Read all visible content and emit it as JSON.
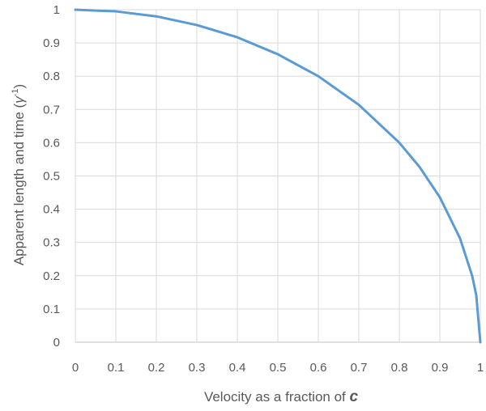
{
  "chart_data": {
    "type": "line",
    "xlabel": "Velocity as a fraction of ",
    "xlabel_var": "c",
    "ylabel": "Apparent length and time (",
    "ylabel_var": "γ",
    "ylabel_sup": "-1",
    "ylabel_end": ")",
    "xlim": [
      0,
      1
    ],
    "ylim": [
      0,
      1
    ],
    "x_ticks": [
      "0",
      "0.1",
      "0.2",
      "0.3",
      "0.4",
      "0.5",
      "0.6",
      "0.7",
      "0.8",
      "0.9",
      "1"
    ],
    "y_ticks": [
      "0",
      "0.1",
      "0.2",
      "0.3",
      "0.4",
      "0.5",
      "0.6",
      "0.7",
      "0.8",
      "0.9",
      "1"
    ],
    "grid": true,
    "series": [
      {
        "color": "#5b9bd5",
        "x": [
          0,
          0.1,
          0.2,
          0.3,
          0.4,
          0.5,
          0.6,
          0.7,
          0.8,
          0.85,
          0.9,
          0.95,
          0.98,
          0.99,
          1
        ],
        "y": [
          1,
          0.995,
          0.98,
          0.954,
          0.917,
          0.866,
          0.8,
          0.714,
          0.6,
          0.527,
          0.436,
          0.312,
          0.199,
          0.141,
          0
        ]
      }
    ]
  }
}
